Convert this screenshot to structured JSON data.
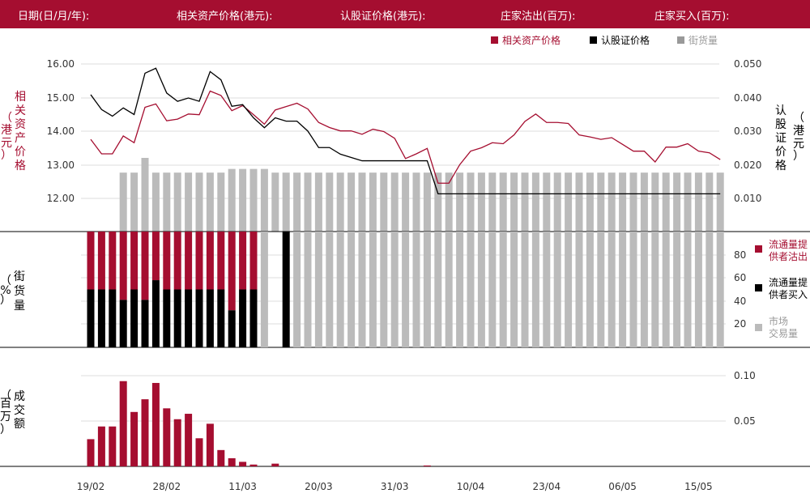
{
  "header": {
    "labels": [
      "日期(日/月/年):",
      "相关资产价格(港元):",
      "认股证价格(港元):",
      "庄家沽出(百万):",
      "庄家买入(百万):"
    ]
  },
  "legend_top": {
    "items": [
      {
        "label": "相关资产价格",
        "color": "#a50e30"
      },
      {
        "label": "认股证价格",
        "color": "#000000"
      },
      {
        "label": "街货量",
        "color": "#999999"
      }
    ]
  },
  "panel1": {
    "left_axis_label": [
      "相",
      "关",
      "资",
      "产",
      "价",
      "格",
      "（",
      "港",
      "元",
      "）"
    ],
    "right_axis_label": [
      "认",
      "股",
      "证",
      "价",
      "格",
      "（",
      "港",
      "元",
      "）"
    ],
    "left_ticks": [
      "16.00",
      "15.00",
      "14.00",
      "13.00",
      "12.00"
    ],
    "right_ticks": [
      "0.050",
      "0.040",
      "0.030",
      "0.020",
      "0.010"
    ]
  },
  "panel2": {
    "left_axis_label": [
      "街",
      "货",
      "量",
      "（",
      "%",
      "）"
    ],
    "right_ticks": [
      "80",
      "60",
      "40",
      "20"
    ],
    "legend": [
      {
        "line1": "流通量提",
        "line2": "供者沽出",
        "color": "#a50e30"
      },
      {
        "line1": "流通量提",
        "line2": "供者买入",
        "color": "#000000"
      },
      {
        "line1": "市场",
        "line2": "交易量",
        "color": "#bbbbbb"
      }
    ]
  },
  "panel3": {
    "left_axis_label": [
      "成",
      "交",
      "额",
      "（",
      "百",
      "万",
      "）"
    ],
    "right_ticks": [
      "0.10",
      "0.05"
    ]
  },
  "x_axis": {
    "ticks": [
      "19/02",
      "28/02",
      "11/03",
      "20/03",
      "31/03",
      "10/04",
      "23/04",
      "06/05",
      "15/05"
    ],
    "tick_index": [
      0,
      7,
      14,
      21,
      28,
      35,
      42,
      49,
      56
    ]
  },
  "chart_data": [
    {
      "type": "line",
      "title": "",
      "y_left_range": [
        11.5,
        16.3
      ],
      "y_right_range": [
        0.0025,
        0.0515
      ],
      "series": [
        {
          "name": "相关资产价格",
          "axis": "left",
          "color": "#a50e30",
          "values": [
            13.85,
            13.42,
            13.42,
            13.95,
            13.75,
            14.8,
            14.9,
            14.4,
            14.45,
            14.6,
            14.58,
            15.28,
            15.15,
            14.7,
            14.85,
            14.58,
            14.3,
            14.72,
            14.82,
            14.92,
            14.75,
            14.35,
            14.2,
            14.1,
            14.1,
            14.0,
            14.15,
            14.08,
            13.88,
            13.28,
            13.42,
            13.58,
            12.55,
            12.55,
            13.1,
            13.5,
            13.6,
            13.75,
            13.72,
            13.98,
            14.38,
            14.6,
            14.35,
            14.35,
            14.32,
            13.98,
            13.92,
            13.85,
            13.9,
            13.7,
            13.5,
            13.5,
            13.18,
            13.62,
            13.62,
            13.72,
            13.5,
            13.45,
            13.25
          ]
        },
        {
          "name": "认股证价格",
          "axis": "right",
          "color": "#000000",
          "values": [
            0.04,
            0.0355,
            0.0335,
            0.036,
            0.034,
            0.0465,
            0.048,
            0.0405,
            0.038,
            0.039,
            0.038,
            0.047,
            0.0445,
            0.0365,
            0.037,
            0.033,
            0.03,
            0.033,
            0.032,
            0.032,
            0.029,
            0.024,
            0.024,
            0.022,
            0.021,
            0.02,
            0.02,
            0.02,
            0.02,
            0.02,
            0.02,
            0.02,
            0.01,
            0.01,
            0.01,
            0.01,
            0.01,
            0.01,
            0.01,
            0.01,
            0.01,
            0.01,
            0.01,
            0.01,
            0.01,
            0.01,
            0.01,
            0.01,
            0.01,
            0.01,
            0.01,
            0.01,
            0.01,
            0.01,
            0.01,
            0.01,
            0.01,
            0.01,
            0.01
          ]
        },
        {
          "name": "街货量",
          "type": "bar",
          "color": "#bbbbbb",
          "values": [
            0,
            0,
            0,
            80,
            80,
            100,
            80,
            80,
            80,
            80,
            80,
            80,
            80,
            85,
            85,
            85,
            85,
            80,
            80,
            80,
            80,
            80,
            80,
            80,
            80,
            80,
            80,
            80,
            80,
            80,
            80,
            80,
            80,
            80,
            80,
            80,
            80,
            80,
            80,
            80,
            80,
            80,
            80,
            80,
            80,
            80,
            80,
            80,
            80,
            80,
            80,
            80,
            80,
            80,
            80,
            80,
            80,
            80,
            80
          ]
        }
      ]
    },
    {
      "type": "bar",
      "title": "",
      "y_range": [
        0,
        100
      ],
      "series": [
        {
          "name": "流通量提供者沽出",
          "color": "#a50e30",
          "values": [
            50,
            50,
            50,
            59,
            50,
            59,
            42,
            50,
            50,
            50,
            50,
            50,
            50,
            68,
            50,
            50,
            0,
            0,
            0,
            0,
            0,
            0,
            0,
            0,
            0,
            0,
            0,
            0,
            0,
            0,
            0,
            0,
            0,
            0,
            0,
            0,
            0,
            0,
            0,
            0,
            0,
            0,
            0,
            0,
            0,
            0,
            0,
            0,
            0,
            0,
            0,
            0,
            0,
            0,
            0,
            0,
            0,
            0,
            0,
            0,
            0
          ]
        },
        {
          "name": "流通量提供者买入",
          "color": "#000000",
          "values": [
            50,
            50,
            50,
            41,
            50,
            41,
            58,
            50,
            50,
            50,
            50,
            50,
            50,
            32,
            50,
            50,
            0,
            0,
            100,
            0,
            0,
            0,
            0,
            0,
            0,
            0,
            0,
            0,
            0,
            0,
            0,
            0,
            0,
            0,
            0,
            0,
            0,
            0,
            0,
            0,
            0,
            0,
            0,
            0,
            0,
            0,
            0,
            0,
            0,
            0,
            0,
            0,
            0,
            0,
            0,
            0,
            0,
            0,
            0,
            0,
            0
          ]
        },
        {
          "name": "市场交易量",
          "color": "#bbbbbb",
          "values": [
            0,
            0,
            0,
            0,
            0,
            0,
            0,
            0,
            0,
            0,
            0,
            0,
            0,
            0,
            0,
            0,
            100,
            0,
            0,
            100,
            100,
            100,
            100,
            100,
            100,
            100,
            100,
            100,
            100,
            100,
            100,
            100,
            100,
            100,
            100,
            100,
            100,
            100,
            100,
            100,
            100,
            100,
            100,
            100,
            100,
            100,
            100,
            100,
            100,
            100,
            100,
            100,
            100,
            100,
            100,
            100,
            100,
            100,
            100,
            100,
            100
          ]
        }
      ]
    },
    {
      "type": "bar",
      "title": "",
      "y_range": [
        0,
        0.11
      ],
      "series": [
        {
          "name": "成交额",
          "color": "#a50e30",
          "values": [
            0.03,
            0.044,
            0.044,
            0.094,
            0.06,
            0.074,
            0.092,
            0.064,
            0.052,
            0.058,
            0.031,
            0.047,
            0.018,
            0.009,
            0.005,
            0.002,
            0,
            0.003,
            0,
            0,
            0,
            0,
            0,
            0,
            0,
            0,
            0,
            0,
            0,
            0,
            0,
            0.001,
            0,
            0,
            0,
            0,
            0,
            0,
            0,
            0,
            0,
            0,
            0,
            0,
            0,
            0,
            0,
            0,
            0,
            0,
            0,
            0,
            0,
            0,
            0,
            0,
            0,
            0,
            0
          ]
        }
      ]
    }
  ]
}
